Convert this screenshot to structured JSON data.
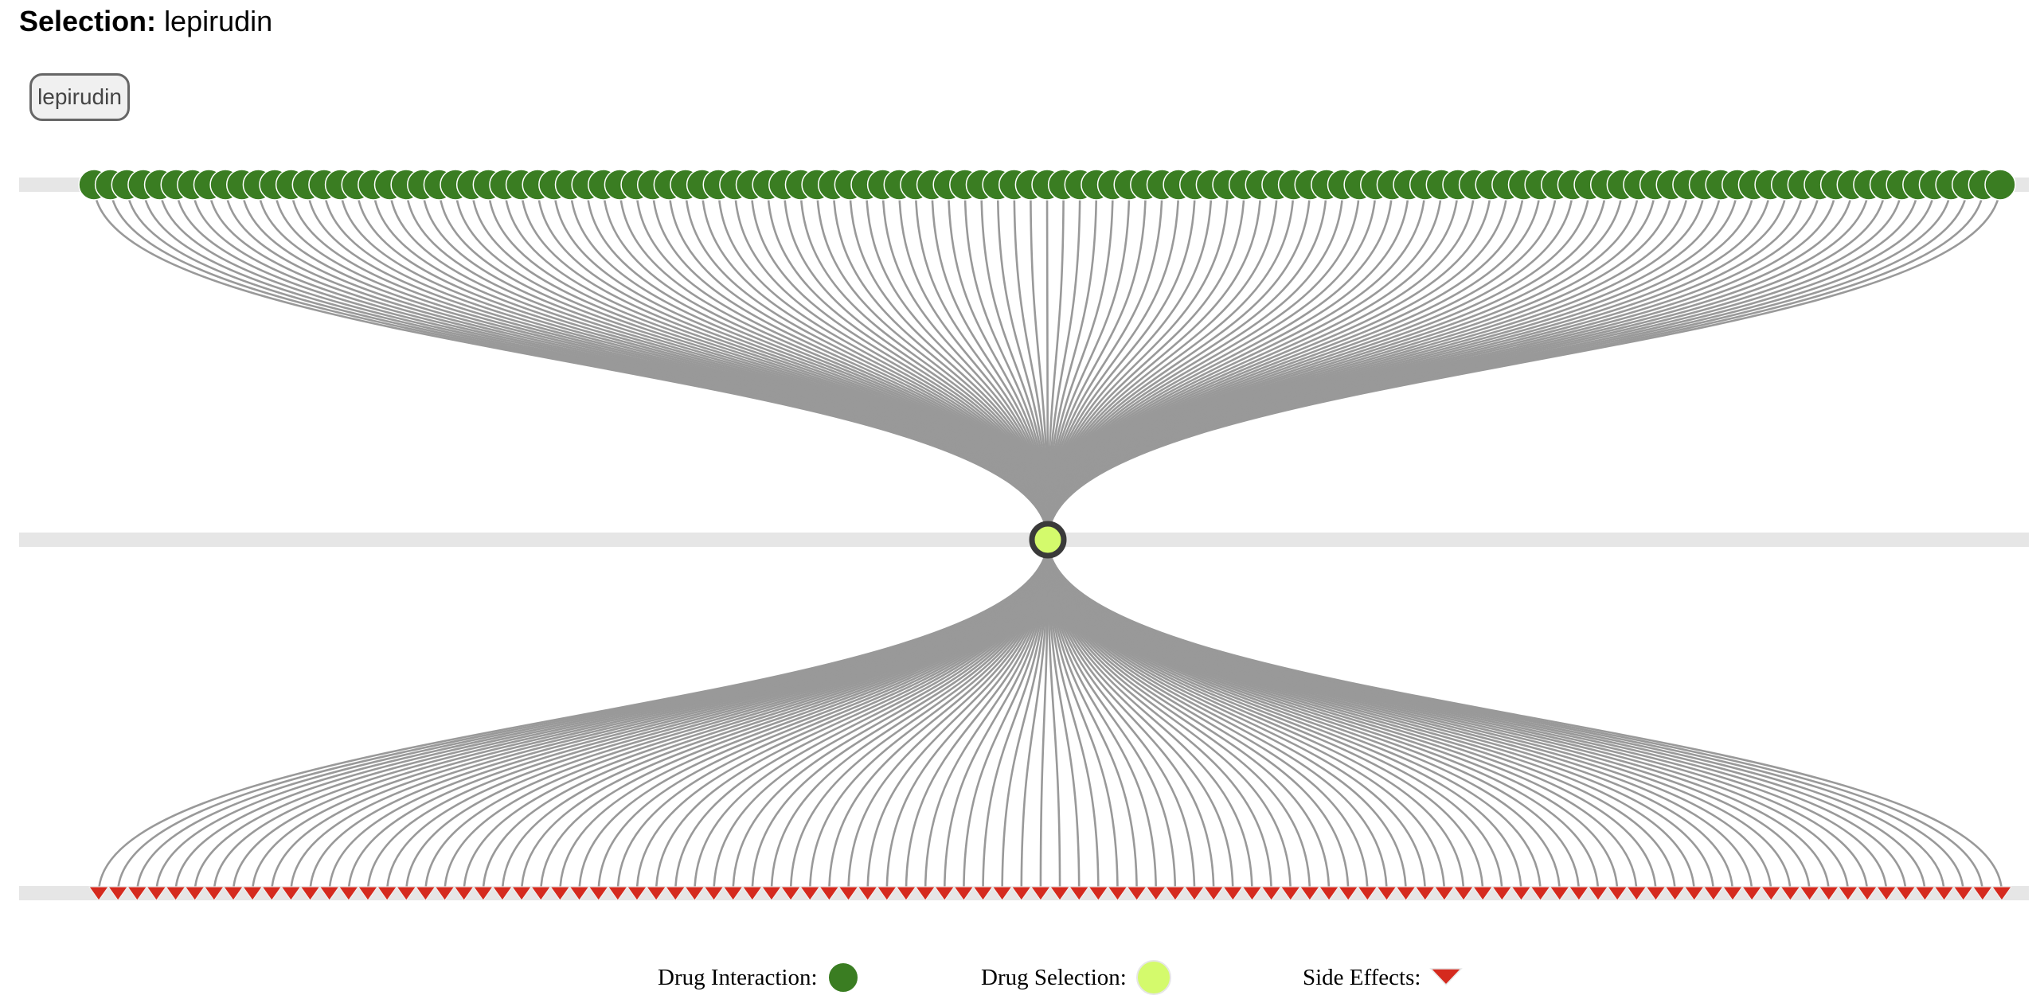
{
  "selection": {
    "label": "Selection:",
    "value": "lepirudin",
    "chip_label": "lepirudin"
  },
  "network": {
    "interaction_count": 117,
    "side_effect_count": 100,
    "colors": {
      "track": "#e6e6e6",
      "interaction_node": "#3a7d22",
      "interaction_node_stroke": "#ffffff",
      "selection_node": "#d4fa6c",
      "selection_node_stroke": "#3a3a3a",
      "side_effect": "#d52a1e",
      "link": "#999999"
    }
  },
  "legend": {
    "drug_interaction_label": "Drug Interaction:",
    "drug_selection_label": "Drug Selection:",
    "side_effects_label": "Side Effects:",
    "drug_interaction_icon": "green-circle-icon",
    "drug_selection_icon": "lime-circle-icon",
    "side_effects_icon": "red-triangle-icon"
  }
}
